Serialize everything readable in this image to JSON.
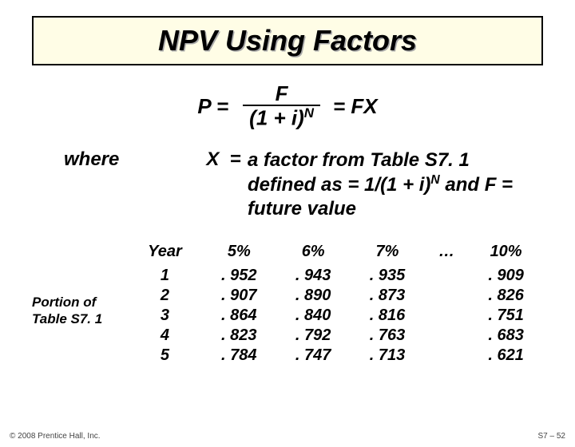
{
  "title": "NPV Using Factors",
  "formula": {
    "lhs": "P =",
    "numerator": "F",
    "denom_base": "(1 + i)",
    "denom_exp": "N",
    "rhs": "= FX"
  },
  "where": {
    "label": "where",
    "var": "X",
    "eq": "=",
    "text_pre": "a factor from Table S7. 1 defined as = 1/(1 + i)",
    "exp": "N",
    "text_post": "  and F = future value"
  },
  "portion_label_l1": "Portion of",
  "portion_label_l2": "Table S7. 1",
  "table": {
    "headers": [
      "Year",
      "5%",
      "6%",
      "7%",
      "…",
      "10%"
    ],
    "rows": [
      [
        "1",
        ". 952",
        ". 943",
        ". 935",
        "",
        ". 909"
      ],
      [
        "2",
        ". 907",
        ". 890",
        ". 873",
        "",
        ". 826"
      ],
      [
        "3",
        ". 864",
        ". 840",
        ". 816",
        "",
        ". 751"
      ],
      [
        "4",
        ". 823",
        ". 792",
        ". 763",
        "",
        ". 683"
      ],
      [
        "5",
        ". 784",
        ". 747",
        ". 713",
        "",
        ". 621"
      ]
    ]
  },
  "footer": {
    "left": "© 2008 Prentice Hall, Inc.",
    "right": "S7 – 52"
  },
  "colors": {
    "title_bg": "#fffde6",
    "title_border": "#000000",
    "text": "#000000",
    "background": "#ffffff"
  },
  "fonts": {
    "title_pt": 36,
    "formula_pt": 26,
    "where_pt": 24,
    "table_pt": 20,
    "portion_pt": 17,
    "footer_pt": 10
  }
}
